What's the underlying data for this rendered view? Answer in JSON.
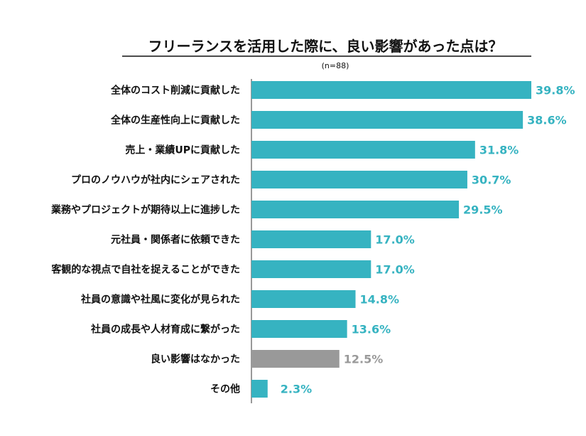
{
  "chart_data": {
    "type": "bar",
    "orientation": "horizontal",
    "title": "フリーランスを活用した際に、良い影響があった点は？",
    "subtitle": "(n=88)",
    "categories": [
      "全体のコスト削減に貢献した",
      "全体の生産性向上に貢献した",
      "売上・業績UPに貢献した",
      "プロのノウハウが社内にシェアされた",
      "業務やプロジェクトが期待以上に進捗した",
      "元社員・関係者に依頼できた",
      "客観的な視点で自社を捉えることができた",
      "社員の意識や社風に変化が見られた",
      "社員の成長や人材育成に繋がった",
      "良い影響はなかった",
      "その他"
    ],
    "values": [
      39.8,
      38.6,
      31.8,
      30.7,
      29.5,
      17.0,
      17.0,
      14.8,
      13.6,
      12.5,
      2.3
    ],
    "value_labels": [
      "39.8%",
      "38.6%",
      "31.8%",
      "30.7%",
      "29.5%",
      "17.0%",
      "17.0%",
      "14.8%",
      "13.6%",
      "12.5%",
      "2.3%"
    ],
    "highlight_category": "良い影響はなかった",
    "xlim": [
      0,
      40
    ],
    "colors": {
      "bar": "#36b3c1",
      "highlight_bar": "#999999",
      "value_label": "#36b3c1",
      "highlight_label": "#999999",
      "text": "#111111",
      "axis": "#333333"
    }
  }
}
